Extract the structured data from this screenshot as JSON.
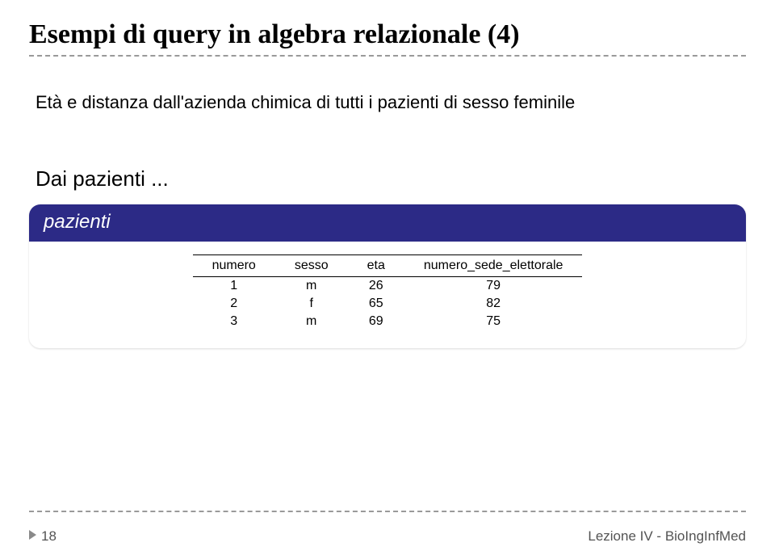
{
  "title": "Esempi di query in algebra relazionale (4)",
  "body_text": "Età e distanza dall'azienda chimica di tutti i pazienti di sesso feminile",
  "dai_line": "Dai pazienti ...",
  "panel": {
    "header": "pazienti",
    "header_bg": "#2c2a86",
    "header_fg": "#ffffff",
    "columns": [
      "numero",
      "sesso",
      "eta",
      "numero_sede_elettorale"
    ],
    "rows": [
      [
        "1",
        "m",
        "26",
        "79"
      ],
      [
        "2",
        "f",
        "65",
        "82"
      ],
      [
        "3",
        "m",
        "69",
        "75"
      ]
    ]
  },
  "footer": {
    "page_number": "18",
    "lesson": "Lezione IV - BioIngInfMed"
  },
  "colors": {
    "dash": "#9a9a9a",
    "text": "#000000",
    "footer_text": "#535353"
  }
}
